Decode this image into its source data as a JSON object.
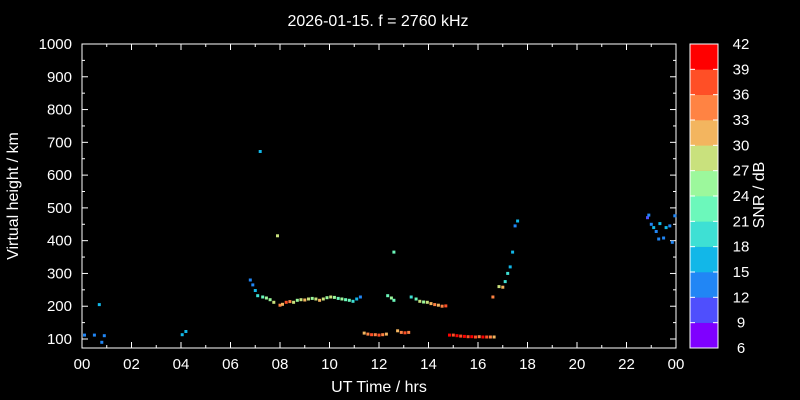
{
  "chart_data": {
    "type": "scatter",
    "title": "2026-01-15. f = 2760 kHz",
    "xlabel": "UT Time / hrs",
    "ylabel": "Virtual height / km",
    "xlim": [
      0,
      24
    ],
    "ylim": [
      80,
      1000
    ],
    "xticks": [
      "00",
      "02",
      "04",
      "06",
      "08",
      "10",
      "12",
      "14",
      "16",
      "18",
      "20",
      "22",
      "00"
    ],
    "yticks": [
      100,
      200,
      300,
      400,
      500,
      600,
      700,
      800,
      900,
      1000
    ],
    "grid": false,
    "background": "#000000",
    "colorbar": {
      "label": "SNR / dB",
      "ticks": [
        6,
        9,
        12,
        15,
        18,
        21,
        24,
        27,
        30,
        33,
        36,
        39,
        42
      ],
      "colors": [
        "#7f00ff",
        "#4f4ffd",
        "#2186f5",
        "#12b7e8",
        "#3ee0d4",
        "#6cf8bb",
        "#9cf89c",
        "#c9e17d",
        "#f3b55f",
        "#ff8343",
        "#ff4f26",
        "#ff0000"
      ]
    },
    "points": [
      {
        "x": 0.1,
        "y": 112,
        "snr": 12
      },
      {
        "x": 0.5,
        "y": 112,
        "snr": 12
      },
      {
        "x": 0.7,
        "y": 205,
        "snr": 15
      },
      {
        "x": 0.8,
        "y": 90,
        "snr": 12
      },
      {
        "x": 0.9,
        "y": 110,
        "snr": 12
      },
      {
        "x": 4.05,
        "y": 113,
        "snr": 15
      },
      {
        "x": 4.2,
        "y": 123,
        "snr": 15
      },
      {
        "x": 6.8,
        "y": 280,
        "snr": 12
      },
      {
        "x": 6.9,
        "y": 265,
        "snr": 12
      },
      {
        "x": 7.0,
        "y": 248,
        "snr": 15
      },
      {
        "x": 7.1,
        "y": 232,
        "snr": 18
      },
      {
        "x": 7.2,
        "y": 672,
        "snr": 15
      },
      {
        "x": 7.3,
        "y": 228,
        "snr": 21
      },
      {
        "x": 7.45,
        "y": 225,
        "snr": 24
      },
      {
        "x": 7.6,
        "y": 220,
        "snr": 24
      },
      {
        "x": 7.75,
        "y": 212,
        "snr": 27
      },
      {
        "x": 7.9,
        "y": 415,
        "snr": 27
      },
      {
        "x": 8.0,
        "y": 203,
        "snr": 33
      },
      {
        "x": 8.1,
        "y": 206,
        "snr": 30
      },
      {
        "x": 8.25,
        "y": 212,
        "snr": 36
      },
      {
        "x": 8.4,
        "y": 214,
        "snr": 33
      },
      {
        "x": 8.55,
        "y": 212,
        "snr": 27
      },
      {
        "x": 8.7,
        "y": 218,
        "snr": 24
      },
      {
        "x": 8.85,
        "y": 220,
        "snr": 27
      },
      {
        "x": 9.0,
        "y": 219,
        "snr": 30
      },
      {
        "x": 9.15,
        "y": 222,
        "snr": 27
      },
      {
        "x": 9.3,
        "y": 224,
        "snr": 24
      },
      {
        "x": 9.45,
        "y": 222,
        "snr": 27
      },
      {
        "x": 9.6,
        "y": 218,
        "snr": 30
      },
      {
        "x": 9.75,
        "y": 222,
        "snr": 27
      },
      {
        "x": 9.9,
        "y": 226,
        "snr": 24
      },
      {
        "x": 10.05,
        "y": 228,
        "snr": 27
      },
      {
        "x": 10.2,
        "y": 227,
        "snr": 24
      },
      {
        "x": 10.35,
        "y": 224,
        "snr": 21
      },
      {
        "x": 10.5,
        "y": 222,
        "snr": 24
      },
      {
        "x": 10.65,
        "y": 220,
        "snr": 21
      },
      {
        "x": 10.8,
        "y": 218,
        "snr": 21
      },
      {
        "x": 10.95,
        "y": 215,
        "snr": 18
      },
      {
        "x": 11.1,
        "y": 222,
        "snr": 15
      },
      {
        "x": 11.25,
        "y": 228,
        "snr": 12
      },
      {
        "x": 11.4,
        "y": 118,
        "snr": 30
      },
      {
        "x": 11.55,
        "y": 115,
        "snr": 33
      },
      {
        "x": 11.7,
        "y": 113,
        "snr": 36
      },
      {
        "x": 11.85,
        "y": 113,
        "snr": 33
      },
      {
        "x": 12.0,
        "y": 112,
        "snr": 36
      },
      {
        "x": 12.15,
        "y": 113,
        "snr": 33
      },
      {
        "x": 12.3,
        "y": 115,
        "snr": 30
      },
      {
        "x": 12.35,
        "y": 232,
        "snr": 21
      },
      {
        "x": 12.5,
        "y": 225,
        "snr": 24
      },
      {
        "x": 12.6,
        "y": 218,
        "snr": 21
      },
      {
        "x": 12.6,
        "y": 365,
        "snr": 21
      },
      {
        "x": 12.75,
        "y": 125,
        "snr": 30
      },
      {
        "x": 12.9,
        "y": 120,
        "snr": 33
      },
      {
        "x": 13.05,
        "y": 119,
        "snr": 36
      },
      {
        "x": 13.2,
        "y": 120,
        "snr": 33
      },
      {
        "x": 13.3,
        "y": 228,
        "snr": 18
      },
      {
        "x": 13.5,
        "y": 222,
        "snr": 21
      },
      {
        "x": 13.65,
        "y": 215,
        "snr": 27
      },
      {
        "x": 13.8,
        "y": 213,
        "snr": 24
      },
      {
        "x": 13.95,
        "y": 212,
        "snr": 27
      },
      {
        "x": 14.1,
        "y": 208,
        "snr": 30
      },
      {
        "x": 14.25,
        "y": 205,
        "snr": 33
      },
      {
        "x": 14.4,
        "y": 203,
        "snr": 30
      },
      {
        "x": 14.55,
        "y": 200,
        "snr": 33
      },
      {
        "x": 14.7,
        "y": 201,
        "snr": 36
      },
      {
        "x": 14.85,
        "y": 112,
        "snr": 39
      },
      {
        "x": 15.0,
        "y": 112,
        "snr": 36
      },
      {
        "x": 15.15,
        "y": 110,
        "snr": 39
      },
      {
        "x": 15.3,
        "y": 109,
        "snr": 36
      },
      {
        "x": 15.45,
        "y": 108,
        "snr": 39
      },
      {
        "x": 15.6,
        "y": 107,
        "snr": 36
      },
      {
        "x": 15.75,
        "y": 107,
        "snr": 39
      },
      {
        "x": 15.9,
        "y": 106,
        "snr": 36
      },
      {
        "x": 16.05,
        "y": 107,
        "snr": 33
      },
      {
        "x": 16.2,
        "y": 106,
        "snr": 39
      },
      {
        "x": 16.35,
        "y": 106,
        "snr": 36
      },
      {
        "x": 16.5,
        "y": 106,
        "snr": 33
      },
      {
        "x": 16.65,
        "y": 106,
        "snr": 30
      },
      {
        "x": 16.6,
        "y": 228,
        "snr": 33
      },
      {
        "x": 16.85,
        "y": 260,
        "snr": 27
      },
      {
        "x": 17.0,
        "y": 258,
        "snr": 30
      },
      {
        "x": 17.1,
        "y": 275,
        "snr": 18
      },
      {
        "x": 17.2,
        "y": 300,
        "snr": 18
      },
      {
        "x": 17.3,
        "y": 320,
        "snr": 15
      },
      {
        "x": 17.4,
        "y": 365,
        "snr": 15
      },
      {
        "x": 17.5,
        "y": 445,
        "snr": 12
      },
      {
        "x": 17.6,
        "y": 460,
        "snr": 15
      },
      {
        "x": 22.85,
        "y": 470,
        "snr": 9
      },
      {
        "x": 22.9,
        "y": 478,
        "snr": 12
      },
      {
        "x": 23.0,
        "y": 450,
        "snr": 12
      },
      {
        "x": 23.1,
        "y": 440,
        "snr": 15
      },
      {
        "x": 23.2,
        "y": 428,
        "snr": 12
      },
      {
        "x": 23.3,
        "y": 405,
        "snr": 12
      },
      {
        "x": 23.35,
        "y": 452,
        "snr": 15
      },
      {
        "x": 23.5,
        "y": 408,
        "snr": 12
      },
      {
        "x": 23.6,
        "y": 440,
        "snr": 15
      },
      {
        "x": 23.75,
        "y": 445,
        "snr": 12
      },
      {
        "x": 23.85,
        "y": 395,
        "snr": 12
      },
      {
        "x": 23.95,
        "y": 476,
        "snr": 12
      }
    ]
  }
}
